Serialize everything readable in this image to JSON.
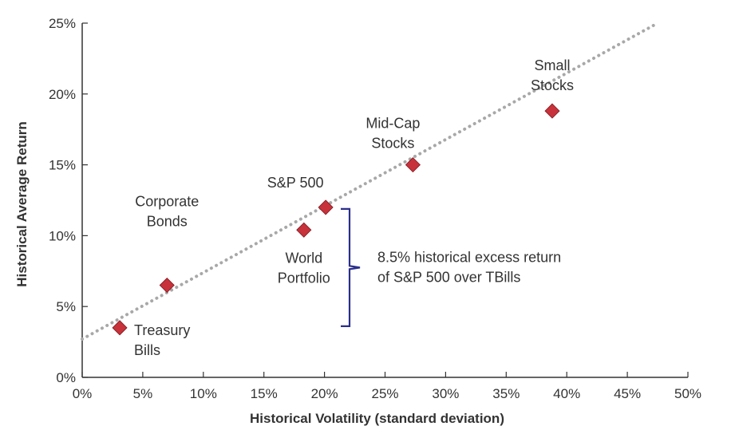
{
  "chart_data": {
    "type": "scatter",
    "title": "",
    "xlabel": "Historical Volatility (standard deviation)",
    "ylabel": "Historical Average Return",
    "xlim": [
      0,
      50
    ],
    "ylim": [
      0,
      25
    ],
    "x_ticks": [
      "0%",
      "5%",
      "10%",
      "15%",
      "20%",
      "25%",
      "30%",
      "35%",
      "40%",
      "45%",
      "50%"
    ],
    "y_ticks": [
      "0%",
      "5%",
      "10%",
      "15%",
      "20%",
      "25%"
    ],
    "grid": false,
    "marker_color": "#C8323A",
    "line_color": "#A8A8A8",
    "bracket_color": "#2B2F8C",
    "points": [
      {
        "x": 3.1,
        "y": 3.5,
        "label": [
          "Treasury",
          "Bills"
        ]
      },
      {
        "x": 7.0,
        "y": 6.5,
        "label": [
          "Corporate",
          "Bonds"
        ]
      },
      {
        "x": 18.3,
        "y": 10.4,
        "label": [
          "World",
          "Portfolio"
        ]
      },
      {
        "x": 20.1,
        "y": 12.0,
        "label": [
          "S&P 500"
        ]
      },
      {
        "x": 27.3,
        "y": 15.0,
        "label": [
          "Mid-Cap",
          "Stocks"
        ]
      },
      {
        "x": 38.8,
        "y": 18.8,
        "label": [
          "Small",
          "Stocks"
        ]
      }
    ],
    "trend_line": {
      "x": [
        0,
        47.5
      ],
      "y": [
        2.7,
        25
      ]
    },
    "annotation": {
      "text": [
        "8.5% historical excess return",
        "of S&P 500 over TBills"
      ],
      "y_range": [
        3.5,
        12.0
      ]
    }
  }
}
